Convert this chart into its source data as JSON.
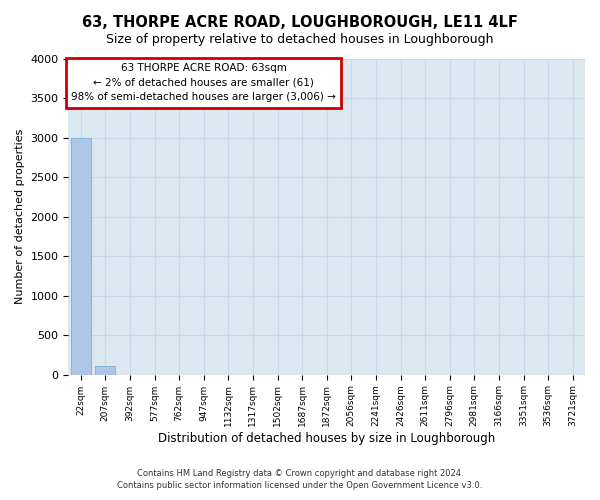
{
  "title": "63, THORPE ACRE ROAD, LOUGHBOROUGH, LE11 4LF",
  "subtitle": "Size of property relative to detached houses in Loughborough",
  "xlabel": "Distribution of detached houses by size in Loughborough",
  "ylabel": "Number of detached properties",
  "footer_line1": "Contains HM Land Registry data © Crown copyright and database right 2024.",
  "footer_line2": "Contains public sector information licensed under the Open Government Licence v3.0.",
  "bin_labels": [
    "22sqm",
    "207sqm",
    "392sqm",
    "577sqm",
    "762sqm",
    "947sqm",
    "1132sqm",
    "1317sqm",
    "1502sqm",
    "1687sqm",
    "1872sqm",
    "2056sqm",
    "2241sqm",
    "2426sqm",
    "2611sqm",
    "2796sqm",
    "2981sqm",
    "3166sqm",
    "3351sqm",
    "3536sqm",
    "3721sqm"
  ],
  "bar_values": [
    3000,
    110,
    0,
    0,
    0,
    0,
    0,
    0,
    0,
    0,
    0,
    0,
    0,
    0,
    0,
    0,
    0,
    0,
    0,
    0,
    0
  ],
  "bar_color": "#aec6e8",
  "ylim": [
    0,
    4000
  ],
  "yticks": [
    0,
    500,
    1000,
    1500,
    2000,
    2500,
    3000,
    3500,
    4000
  ],
  "annotation_title": "63 THORPE ACRE ROAD: 63sqm",
  "annotation_line1": "← 2% of detached houses are smaller (61)",
  "annotation_line2": "98% of semi-detached houses are larger (3,006) →",
  "annotation_box_color": "#cc0000",
  "grid_color": "#c8d8e8",
  "bg_color": "#dce8f0"
}
